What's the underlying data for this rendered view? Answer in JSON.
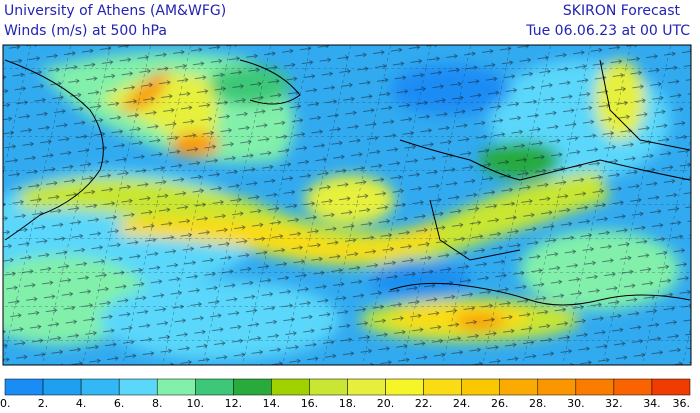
{
  "header": {
    "left": [
      "University of Athens (AM&WFG)",
      "Winds (m/s) at 500 hPa"
    ],
    "right": [
      "SKIRON Forecast",
      "Tue 06.06.23 at 00 UTC"
    ]
  },
  "colorbar": {
    "colors": [
      "#1a8cf5",
      "#1ea0f0",
      "#32b9f5",
      "#5ad7fa",
      "#82f0aa",
      "#3cc878",
      "#28aa3c",
      "#a0d200",
      "#c8e632",
      "#e6f03c",
      "#f5f528",
      "#fadc14",
      "#fac800",
      "#faaa00",
      "#fa9600",
      "#fa7d00",
      "#fa6400",
      "#f03c00"
    ],
    "labels": [
      "0.",
      "2.",
      "4.",
      "6.",
      "8.",
      "10.",
      "12.",
      "14.",
      "16.",
      "18.",
      "20.",
      "22.",
      "24.",
      "26.",
      "28.",
      "30.",
      "32.",
      "34.",
      "36."
    ]
  }
}
